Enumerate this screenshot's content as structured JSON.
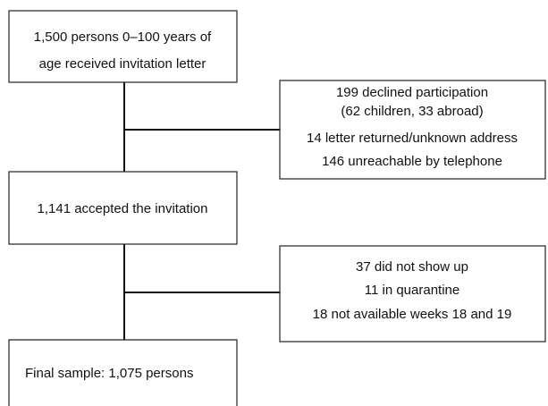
{
  "nodes": [
    {
      "lines": [
        "1,500 persons 0–100 years of",
        "age received invitation letter"
      ]
    },
    {
      "lines": [
        "199 declined participation",
        "(62 children, 33 abroad)",
        "14 letter returned/unknown address",
        "146 unreachable by telephone"
      ]
    },
    {
      "lines": [
        "1,141 accepted the invitation"
      ]
    },
    {
      "lines": [
        "37 did not show up",
        "11 in quarantine",
        "18 not available weeks 18 and 19"
      ]
    },
    {
      "lines": [
        "Final sample: 1,075 persons"
      ]
    }
  ]
}
